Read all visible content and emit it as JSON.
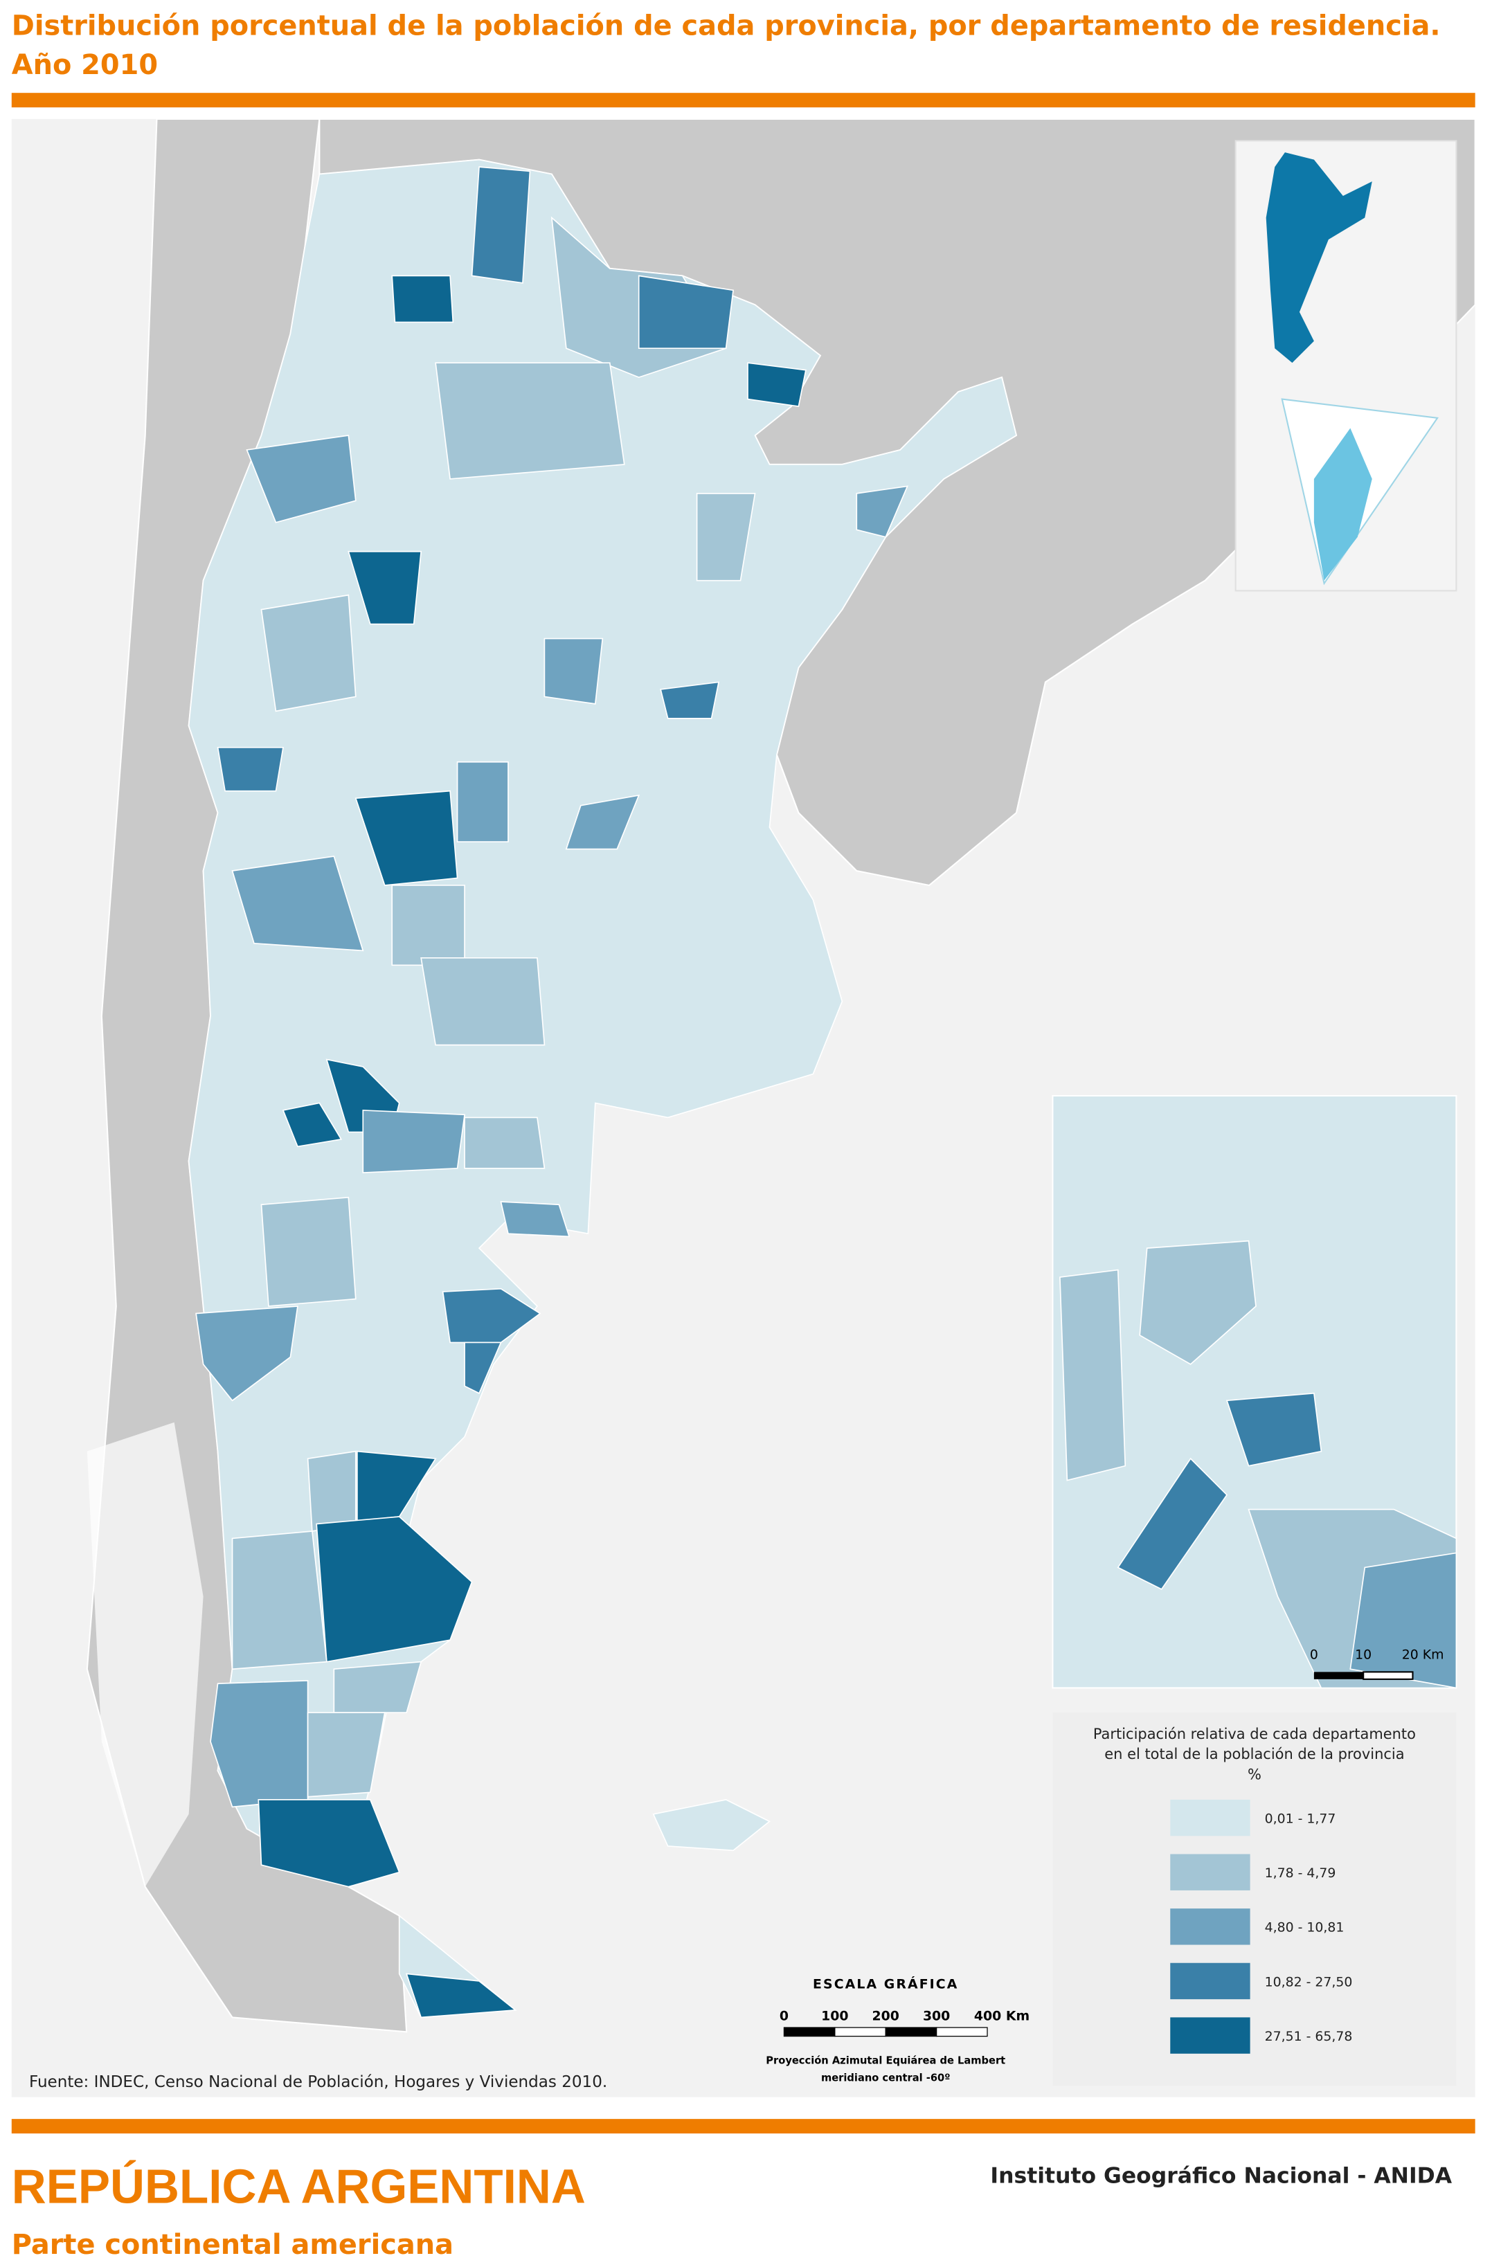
{
  "header": {
    "title": [
      "Distribución porcentual de la población de cada provincia, por departamento de residencia.",
      "Año 2010"
    ]
  },
  "legend": {
    "title": [
      "Participación relativa de cada departamento",
      "en el total de la población de la provincia",
      "%"
    ],
    "items": [
      {
        "label": "0,01 - 1,77",
        "color": "#d4e7ed"
      },
      {
        "label": "1,78 - 4,79",
        "color": "#a3c5d5"
      },
      {
        "label": "4,80 - 10,81",
        "color": "#6fa3c0"
      },
      {
        "label": "10,82 - 27,50",
        "color": "#3a80a8"
      },
      {
        "label": "27,51 - 65,78",
        "color": "#0d6690"
      }
    ]
  },
  "scale": {
    "title": "ESCALA GRÁFICA",
    "labels": [
      "0",
      "100",
      "200",
      "300",
      "400 Km"
    ],
    "projection": [
      "Proyección Azimutal Equiárea de Lambert",
      "meridiano central -60º"
    ]
  },
  "inset_scale": {
    "labels": [
      "0",
      "10",
      "20 Km"
    ]
  },
  "source": "Fuente: INDEC, Censo Nacional de Población, Hogares y Viviendas 2010.",
  "footer": {
    "title": "REPÚBLICA ARGENTINA",
    "subtitle": "Parte continental americana",
    "institution": "Instituto Geográfico Nacional - ANIDA"
  }
}
